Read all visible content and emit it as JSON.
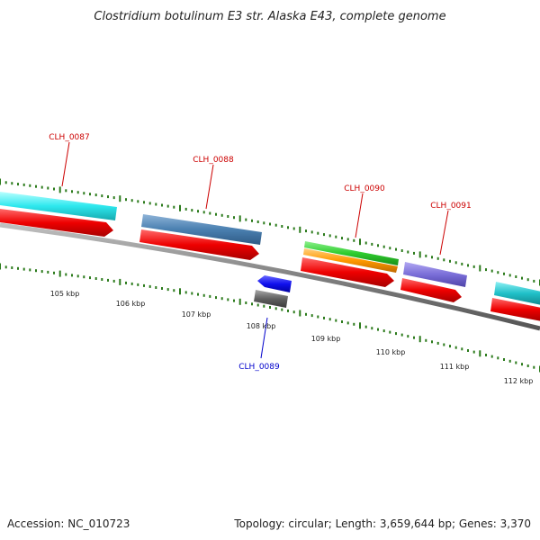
{
  "title": "Clostridium botulinum E3 str. Alaska E43, complete genome",
  "footer": {
    "accession": "Accession: NC_010723",
    "summary": "Topology: circular; Length: 3,659,644 bp; Genes: 3,370"
  },
  "colors": {
    "forward_label": "#cc0000",
    "reverse_label": "#0000cc",
    "tick": "#2a7a1a",
    "backbone": "#808080",
    "cds": "#ff0000"
  },
  "scale_labels": [
    "105 kbp",
    "106 kbp",
    "107 kbp",
    "108 kbp",
    "109 kbp",
    "110 kbp",
    "111 kbp",
    "112 kbp"
  ],
  "genes": [
    {
      "name": "CLH_0087",
      "strand": "+",
      "feature_colors": [
        "#2ee8ee"
      ]
    },
    {
      "name": "CLH_0088",
      "strand": "+",
      "feature_colors": [
        "#4a7fb0"
      ]
    },
    {
      "name": "CLH_0089",
      "strand": "-",
      "feature_colors": [
        "#1010ee",
        "#606060"
      ]
    },
    {
      "name": "CLH_0090",
      "strand": "+",
      "feature_colors": [
        "#2ecc2e",
        "#ff9900"
      ]
    },
    {
      "name": "CLH_0091",
      "strand": "+",
      "feature_colors": [
        "#7a6ed8"
      ]
    }
  ],
  "extra_feature_color": "#20c0c8"
}
